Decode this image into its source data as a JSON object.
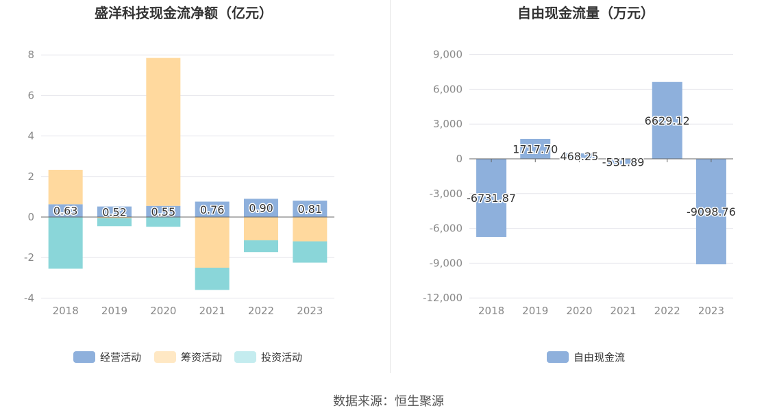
{
  "charts": [
    {
      "title": "盛洋科技现金流净额（亿元）",
      "chart_data": {
        "type": "bar",
        "stacked": true,
        "categories": [
          "2018",
          "2019",
          "2020",
          "2021",
          "2022",
          "2023"
        ],
        "series": [
          {
            "name": "经营活动",
            "color": "#8eb0dc",
            "values": [
              0.63,
              0.52,
              0.55,
              0.76,
              0.9,
              0.81
            ],
            "labels": [
              "0.63",
              "0.52",
              "0.55",
              "0.76",
              "0.90",
              "0.81"
            ]
          },
          {
            "name": "筹资活动",
            "color": "#ffd99e",
            "values": [
              1.7,
              -0.05,
              7.3,
              -2.5,
              -1.15,
              -1.2
            ]
          },
          {
            "name": "投资活动",
            "color": "#8ad6d9",
            "values": [
              -2.55,
              -0.4,
              -0.48,
              -1.1,
              -0.58,
              -1.05
            ]
          }
        ],
        "legend_colors": [
          "#8eb0dc",
          "#ffe8c4",
          "#c4ecef"
        ],
        "yticks": [
          -4,
          -2,
          0,
          2,
          4,
          6,
          8
        ],
        "ylim": [
          -4,
          8.5
        ],
        "grid": true,
        "legend": "bottom"
      }
    },
    {
      "title": "自由现金流量（万元）",
      "chart_data": {
        "type": "bar",
        "categories": [
          "2018",
          "2019",
          "2020",
          "2021",
          "2022",
          "2023"
        ],
        "series": [
          {
            "name": "自由现金流",
            "color": "#8eb0dc",
            "values": [
              -6731.87,
              1717.7,
              468.25,
              -531.89,
              6629.12,
              -9098.76
            ],
            "labels": [
              "-6731.87",
              "1717.70",
              "468.25",
              "-531.89",
              "6629.12",
              "-9098.76"
            ]
          }
        ],
        "yticks": [
          -12000,
          -9000,
          -6000,
          -3000,
          0,
          3000,
          6000,
          9000
        ],
        "ytick_labels": [
          "-12,000",
          "-9,000",
          "-6,000",
          "-3,000",
          "0",
          "3,000",
          "6,000",
          "9,000"
        ],
        "ylim": [
          -12000,
          9000
        ],
        "grid": true,
        "legend": "bottom"
      }
    }
  ],
  "source": "数据来源：恒生聚源"
}
